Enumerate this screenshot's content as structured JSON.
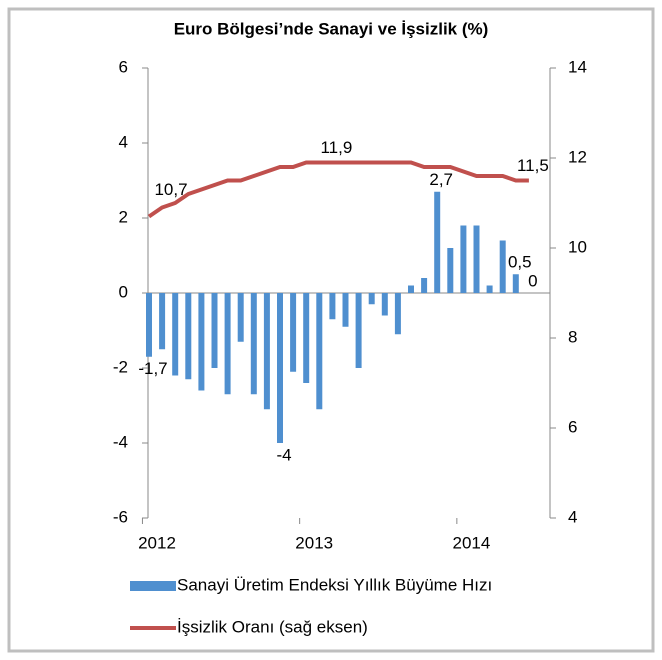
{
  "chart_data": {
    "type": "bar-line",
    "title": "Euro Bölgesi’nde Sanayi ve İşsizlik (%)",
    "categories": [
      "2012",
      null,
      null,
      null,
      null,
      null,
      null,
      null,
      null,
      null,
      null,
      null,
      "2013",
      null,
      null,
      null,
      null,
      null,
      null,
      null,
      null,
      null,
      null,
      null,
      "2014",
      null,
      null,
      null,
      null,
      null
    ],
    "series": [
      {
        "name": "Sanayi Üretim Endeksi Yıllık Büyüme Hızı",
        "color": "#4f8fcf",
        "kind": "bar",
        "values": [
          -1.7,
          -1.5,
          -2.2,
          -2.3,
          -2.6,
          -2.0,
          -2.7,
          -1.3,
          -2.7,
          -3.1,
          -4.0,
          -2.1,
          -2.4,
          -3.1,
          -0.7,
          -0.9,
          -2.0,
          -0.3,
          -0.6,
          -1.1,
          0.2,
          0.4,
          2.7,
          1.2,
          1.8,
          1.8,
          0.2,
          1.4,
          0.5,
          0
        ],
        "value_labels": [
          "-1,7",
          null,
          null,
          null,
          null,
          null,
          null,
          null,
          null,
          null,
          "-4",
          null,
          null,
          null,
          null,
          null,
          null,
          null,
          null,
          null,
          null,
          null,
          "2,7",
          null,
          null,
          null,
          null,
          null,
          "0,5",
          "0"
        ]
      },
      {
        "name": "İşsizlik Oranı (sağ eksen)",
        "color": "#c0504d",
        "kind": "line",
        "axis": "y2",
        "values": [
          10.7,
          10.9,
          11.0,
          11.2,
          11.3,
          11.4,
          11.5,
          11.5,
          11.6,
          11.7,
          11.8,
          11.8,
          11.9,
          11.9,
          11.9,
          11.9,
          11.9,
          11.9,
          11.9,
          11.9,
          11.9,
          11.8,
          11.8,
          11.8,
          11.7,
          11.6,
          11.6,
          11.6,
          11.5,
          11.5
        ],
        "value_labels": [
          "10,7",
          null,
          null,
          null,
          null,
          null,
          null,
          null,
          null,
          null,
          null,
          null,
          null,
          null,
          "11,9",
          null,
          null,
          null,
          null,
          null,
          null,
          null,
          null,
          null,
          null,
          null,
          null,
          null,
          null,
          "11,5"
        ]
      }
    ],
    "ylim": [
      -6,
      6
    ],
    "yticks": [
      -6,
      -4,
      -2,
      0,
      2,
      4,
      6
    ],
    "y2lim": [
      4,
      14
    ],
    "y2ticks": [
      4,
      6,
      8,
      10,
      12,
      14
    ]
  }
}
